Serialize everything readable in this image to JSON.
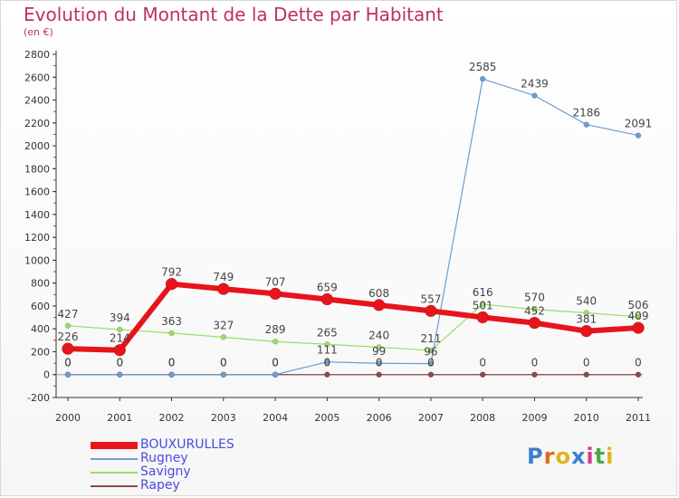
{
  "header": {
    "title": "Evolution du Montant de la Dette par Habitant",
    "subtitle": "(en €)"
  },
  "logo": {
    "text": "Proxiti",
    "letter_colors": [
      "#3a7fd0",
      "#e06a1a",
      "#e2b21c",
      "#3a7fd0",
      "#d83a8a",
      "#4aa84a",
      "#e2b21c"
    ]
  },
  "chart_data": {
    "type": "line",
    "title": "Evolution du Montant de la Dette par Habitant",
    "subtitle": "(en €)",
    "xlabel": "",
    "ylabel": "",
    "x": [
      "2000",
      "2001",
      "2002",
      "2003",
      "2004",
      "2005",
      "2006",
      "2007",
      "2008",
      "2009",
      "2010",
      "2011"
    ],
    "ylim": [
      -200,
      2800
    ],
    "yticks": [
      -200,
      0,
      200,
      400,
      600,
      800,
      1000,
      1200,
      1400,
      1600,
      1800,
      2000,
      2200,
      2400,
      2600,
      2800
    ],
    "grid": false,
    "legend_position": "bottom-left",
    "series": [
      {
        "name": "BOUXURULLES",
        "color": "#e8141c",
        "values": [
          226,
          214,
          792,
          749,
          707,
          659,
          608,
          557,
          501,
          452,
          381,
          409
        ],
        "labels": [
          "226",
          "214",
          "792",
          "749",
          "707",
          "659",
          "608",
          "557",
          "501",
          "452",
          "381",
          "409"
        ]
      },
      {
        "name": "Rugney",
        "color": "#6a9ed0",
        "values": [
          0,
          0,
          0,
          0,
          0,
          111,
          99,
          96,
          2585,
          2439,
          2186,
          2091
        ],
        "labels": [
          "0",
          "0",
          "0",
          "0",
          "0",
          "111",
          "99",
          "96",
          "2585",
          "2439",
          "2186",
          "2091"
        ]
      },
      {
        "name": "Savigny",
        "color": "#99dd66",
        "values": [
          427,
          394,
          363,
          327,
          289,
          265,
          240,
          211,
          616,
          570,
          540,
          506
        ],
        "labels": [
          "427",
          "394",
          "363",
          "327",
          "289",
          "265",
          "240",
          "211",
          "616",
          "570",
          "540",
          "506"
        ]
      },
      {
        "name": "Rapey",
        "color": "#8b4a4a",
        "values": [
          0,
          0,
          0,
          0,
          0,
          0,
          0,
          0,
          0,
          0,
          0,
          0
        ],
        "labels": [
          "0",
          "0",
          "0",
          "0",
          "0",
          "0",
          "0",
          "0",
          "0",
          "0",
          "0",
          "0"
        ]
      }
    ]
  }
}
